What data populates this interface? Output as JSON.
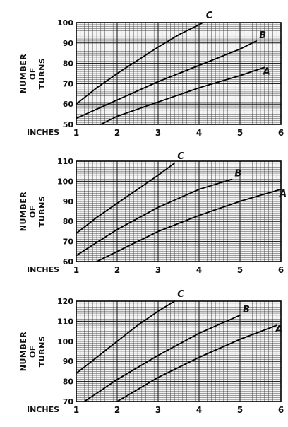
{
  "chart_data": [
    {
      "type": "line",
      "xlabel": "INCHES",
      "ylabel": [
        "NUMBER",
        "OF",
        "TURNS"
      ],
      "x_ticks": [
        "1",
        "2",
        "3",
        "4",
        "5",
        "6"
      ],
      "y_ticks": [
        "50",
        "60",
        "70",
        "80",
        "90",
        "100"
      ],
      "xlim": [
        1,
        6
      ],
      "ylim": [
        50,
        100
      ],
      "grid": true,
      "series": [
        {
          "name": "C",
          "x": [
            1,
            1.5,
            2,
            2.5,
            3,
            3.5,
            4.1
          ],
          "y": [
            60,
            68,
            75,
            81.5,
            88,
            94,
            100
          ]
        },
        {
          "name": "B",
          "x": [
            1,
            2,
            3,
            4,
            5,
            5.4
          ],
          "y": [
            53,
            62,
            71,
            79,
            87,
            91
          ]
        },
        {
          "name": "A",
          "x": [
            1.6,
            2,
            3,
            4,
            5,
            5.6
          ],
          "y": [
            50,
            54,
            61,
            68,
            74,
            78
          ]
        }
      ]
    },
    {
      "type": "line",
      "xlabel": "INCHES",
      "ylabel": [
        "NUMBER",
        "OF",
        "TURNS"
      ],
      "x_ticks": [
        "1",
        "2",
        "3",
        "4",
        "5",
        "6"
      ],
      "y_ticks": [
        "60",
        "70",
        "80",
        "90",
        "100",
        "110"
      ],
      "xlim": [
        1,
        6
      ],
      "ylim": [
        60,
        110
      ],
      "grid": true,
      "series": [
        {
          "name": "C",
          "x": [
            1,
            1.5,
            2,
            2.5,
            3,
            3.4
          ],
          "y": [
            74,
            82,
            89,
            96,
            103,
            109
          ]
        },
        {
          "name": "B",
          "x": [
            1,
            2,
            3,
            4,
            4.8
          ],
          "y": [
            63,
            76,
            87,
            96,
            101
          ]
        },
        {
          "name": "A",
          "x": [
            1.5,
            2,
            3,
            4,
            5,
            6
          ],
          "y": [
            60,
            65,
            75,
            83,
            90,
            96
          ]
        }
      ]
    },
    {
      "type": "line",
      "xlabel": "INCHES",
      "ylabel": [
        "NUMBER",
        "OF",
        "TURNS"
      ],
      "x_ticks": [
        "1",
        "2",
        "3",
        "4",
        "5",
        "6"
      ],
      "y_ticks": [
        "70",
        "80",
        "90",
        "100",
        "110",
        "120"
      ],
      "xlim": [
        1,
        6
      ],
      "ylim": [
        70,
        120
      ],
      "grid": true,
      "series": [
        {
          "name": "C",
          "x": [
            1,
            1.5,
            2,
            2.5,
            3,
            3.4
          ],
          "y": [
            84,
            92,
            100,
            108,
            115,
            120
          ]
        },
        {
          "name": "B",
          "x": [
            1.2,
            2,
            3,
            4,
            5
          ],
          "y": [
            70,
            81,
            93,
            104,
            113
          ]
        },
        {
          "name": "A",
          "x": [
            2,
            3,
            4,
            5,
            5.9
          ],
          "y": [
            70,
            82,
            92,
            101,
            108
          ]
        }
      ]
    }
  ]
}
